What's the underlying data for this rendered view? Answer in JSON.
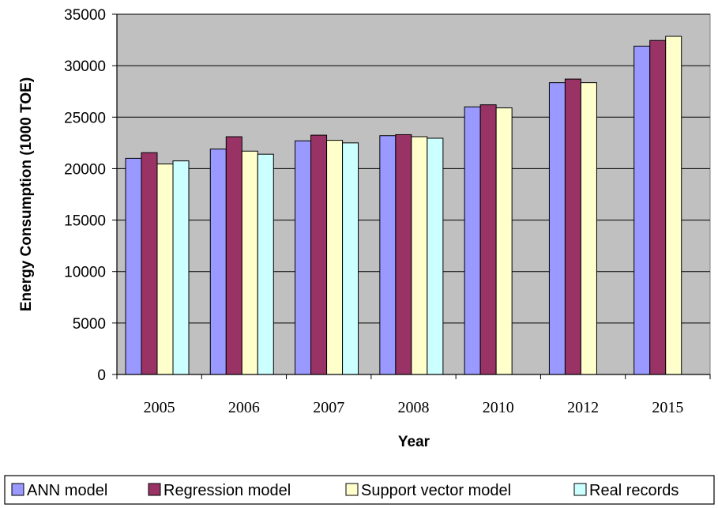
{
  "chart_data": {
    "type": "bar",
    "title": "",
    "xlabel": "Year",
    "ylabel": "Energy Consumption (1000 TOE)",
    "categories": [
      "2005",
      "2006",
      "2007",
      "2008",
      "2010",
      "2012",
      "2015"
    ],
    "ylim": [
      0,
      35000
    ],
    "yticks": [
      "0",
      "5000",
      "10000",
      "15000",
      "20000",
      "25000",
      "30000",
      "35000"
    ],
    "grid": true,
    "legend_position": "bottom",
    "plot_background": "#c0c0c0",
    "series": [
      {
        "name": "ANN model",
        "color": "#9999ff",
        "values": [
          21000,
          21900,
          22700,
          23200,
          26000,
          28350,
          31900
        ]
      },
      {
        "name": "Regression model",
        "color": "#993366",
        "values": [
          21550,
          23100,
          23250,
          23300,
          26200,
          28700,
          32450
        ]
      },
      {
        "name": "Support vector model",
        "color": "#ffffcc",
        "values": [
          20450,
          21700,
          22750,
          23100,
          25900,
          28350,
          32850
        ]
      },
      {
        "name": "Real records",
        "color": "#ccffff",
        "values": [
          20750,
          21400,
          22500,
          22950,
          null,
          null,
          null
        ]
      }
    ]
  }
}
